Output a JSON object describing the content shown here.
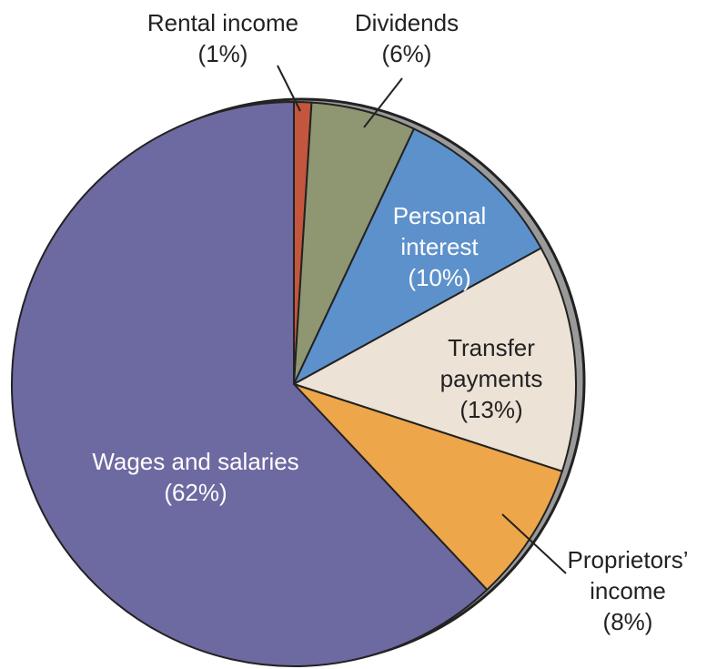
{
  "chart_data": {
    "type": "pie",
    "categories": [
      "Rental income",
      "Dividends",
      "Personal interest",
      "Transfer payments",
      "Proprietors’ income",
      "Wages and salaries"
    ],
    "values": [
      1,
      6,
      10,
      13,
      8,
      62
    ],
    "value_labels": [
      "(1%)",
      "(6%)",
      "(10%)",
      "(13%)",
      "(8%)",
      "(62%)"
    ],
    "colors": [
      "#c3563d",
      "#8f9672",
      "#5d91cb",
      "#ece2d5",
      "#eea64b",
      "#6d69a1"
    ]
  }
}
